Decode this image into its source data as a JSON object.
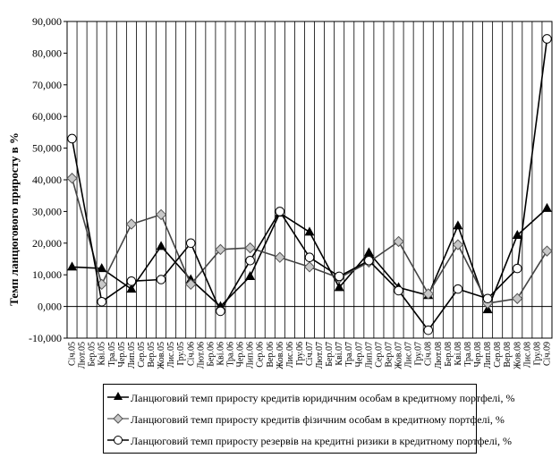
{
  "chart_data": {
    "type": "line",
    "title": "",
    "xlabel": "",
    "ylabel": "Темп ланцюгового приросту в %",
    "ylim": [
      -10,
      90
    ],
    "yticks": [
      "-10,000",
      "0,000",
      "10,000",
      "20,000",
      "30,000",
      "40,000",
      "50,000",
      "60,000",
      "70,000",
      "80,000",
      "90,000"
    ],
    "grid": "vertical",
    "legend_position": "bottom",
    "categories": [
      "Січ.05",
      "Лют.05",
      "Бер.05",
      "Кві.05",
      "Тра.05",
      "Чер.05",
      "Лип.05",
      "Сер.05",
      "Вер.05",
      "Жов.05",
      "Лис.05",
      "Гру.05",
      "Січ.06",
      "Лют.06",
      "Бер.06",
      "Кві.06",
      "Тра.06",
      "Чер.06",
      "Лип.06",
      "Сер.06",
      "Вер.06",
      "Жов.06",
      "Лис.06",
      "Гру.06",
      "Січ.07",
      "Лют.07",
      "Бер.07",
      "Кві.07",
      "Тра.07",
      "Чер.07",
      "Лип.07",
      "Сер.07",
      "Вер.07",
      "Жов.07",
      "Лис.07",
      "Гру.07",
      "Січ.08",
      "Лют.08",
      "Бер.08",
      "Кві.08",
      "Тра.08",
      "Чер.08",
      "Лип.08",
      "Сер.08",
      "Вер.08",
      "Жов.08",
      "Лис.08",
      "Гру.08",
      "Січ.09"
    ],
    "series": [
      {
        "name": "Ланцюговий темп приросту кредитів юридичним особам в кредитному портфелі, %",
        "marker": "triangle",
        "color": "#000000",
        "points": [
          [
            0,
            12.5
          ],
          [
            3,
            12
          ],
          [
            6,
            5.5
          ],
          [
            9,
            19
          ],
          [
            12,
            8.5
          ],
          [
            15,
            0
          ],
          [
            18,
            9.5
          ],
          [
            21,
            29.5
          ],
          [
            24,
            23.5
          ],
          [
            27,
            6
          ],
          [
            30,
            17
          ],
          [
            33,
            6
          ],
          [
            36,
            3.5
          ],
          [
            39,
            25.5
          ],
          [
            42,
            -1
          ],
          [
            45,
            22.5
          ],
          [
            48,
            31
          ]
        ]
      },
      {
        "name": "Ланцюговий темп приросту кредитів фізичним особам в кредитному портфелі, %",
        "marker": "diamond",
        "color": "#000000",
        "points": [
          [
            0,
            40.5
          ],
          [
            3,
            7
          ],
          [
            6,
            26
          ],
          [
            9,
            29
          ],
          [
            12,
            7
          ],
          [
            15,
            18
          ],
          [
            18,
            18.5
          ],
          [
            21,
            15.5
          ],
          [
            24,
            12.5
          ],
          [
            27,
            9
          ],
          [
            30,
            14
          ],
          [
            33,
            20.5
          ],
          [
            36,
            4
          ],
          [
            39,
            19.5
          ],
          [
            42,
            1
          ],
          [
            45,
            2.5
          ],
          [
            48,
            17.5
          ]
        ]
      },
      {
        "name": "Ланцюговий темп приросту резервів на кредитні ризики в кредитному портфелі, %",
        "marker": "circle",
        "color": "#000000",
        "points": [
          [
            0,
            53
          ],
          [
            3,
            1.5
          ],
          [
            6,
            8
          ],
          [
            9,
            8.5
          ],
          [
            12,
            20
          ],
          [
            15,
            -1.5
          ],
          [
            18,
            14.5
          ],
          [
            21,
            30
          ],
          [
            24,
            15.5
          ],
          [
            27,
            9.5
          ],
          [
            30,
            14.5
          ],
          [
            33,
            5
          ],
          [
            36,
            -7.5
          ],
          [
            39,
            5.5
          ],
          [
            42,
            2.5
          ],
          [
            45,
            12
          ],
          [
            48,
            84.5
          ]
        ]
      }
    ]
  }
}
